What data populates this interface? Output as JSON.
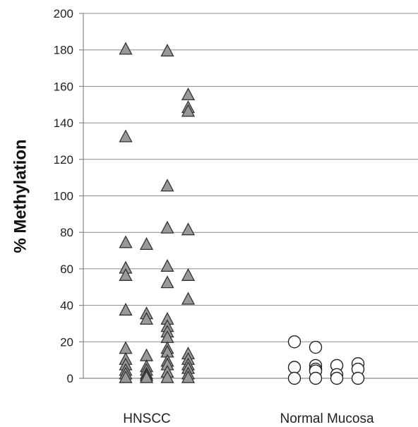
{
  "chart_data": {
    "type": "scatter",
    "title": "",
    "xlabel": "",
    "ylabel": "% Methylation",
    "ylim": [
      0,
      200
    ],
    "yticks": [
      "0",
      "20",
      "40",
      "60",
      "80",
      "100",
      "120",
      "140",
      "160",
      "180",
      "200"
    ],
    "grid": true,
    "legend": "none",
    "categories": [
      "HNSCC",
      "Normal Mucosa"
    ],
    "series": [
      {
        "category": "HNSCC",
        "marker": "triangle",
        "color": "#999999",
        "columns": [
          [
            180,
            132,
            74,
            60,
            56,
            37,
            16,
            10,
            7,
            4,
            2,
            0
          ],
          [
            73,
            35,
            32,
            12,
            6,
            4,
            2,
            1,
            0
          ],
          [
            179,
            105,
            82,
            61,
            52,
            32,
            28,
            25,
            22,
            16,
            14,
            9,
            7,
            3,
            0
          ],
          [
            155,
            148,
            146,
            81,
            56,
            43,
            13,
            10,
            7,
            5,
            2,
            0
          ]
        ]
      },
      {
        "category": "Normal Mucosa",
        "marker": "circle",
        "color": "#ffffff",
        "columns": [
          [
            20,
            6,
            0
          ],
          [
            17,
            7,
            5,
            4,
            0
          ],
          [
            7,
            2,
            0
          ],
          [
            8,
            5,
            0
          ]
        ]
      }
    ]
  }
}
